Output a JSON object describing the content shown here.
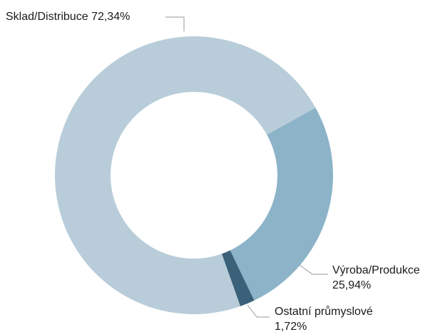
{
  "chart_data": {
    "type": "donut",
    "categories": [
      "Sklad/Distribuce",
      "Výroba/Produkce",
      "Ostatní průmyslové"
    ],
    "values": [
      72.34,
      25.94,
      1.72
    ],
    "value_labels": [
      "72,34%",
      "25,94%",
      "1,72%"
    ],
    "colors": [
      "#b8cdd9",
      "#8cb3c8",
      "#3a6179"
    ]
  }
}
